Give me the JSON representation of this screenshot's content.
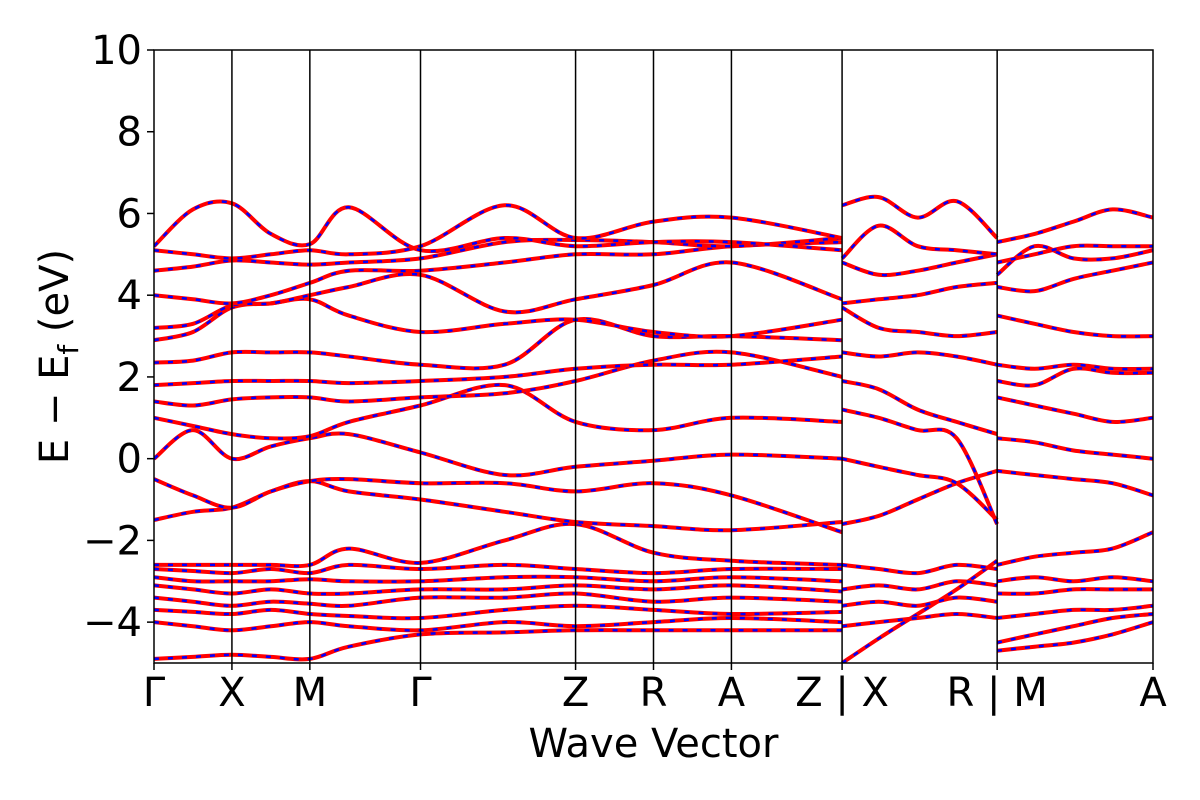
{
  "chart_data": {
    "type": "line",
    "xlabel": "Wave Vector",
    "ylabel_main": "E − E",
    "ylabel_sub": "f",
    "ylabel_unit": " (eV)",
    "ylim": [
      -5,
      10
    ],
    "yticks": [
      {
        "value": -4,
        "label": "−4"
      },
      {
        "value": -2,
        "label": "−2"
      },
      {
        "value": 0,
        "label": "0"
      },
      {
        "value": 2,
        "label": "2"
      },
      {
        "value": 4,
        "label": "4"
      },
      {
        "value": 6,
        "label": "6"
      },
      {
        "value": 8,
        "label": "8"
      },
      {
        "value": 10,
        "label": "10"
      }
    ],
    "kpoints": [
      {
        "label": "Γ",
        "pos": 0
      },
      {
        "label": "X",
        "pos": 1
      },
      {
        "label": "M",
        "pos": 2
      },
      {
        "label": "Γ",
        "pos": 3.42
      },
      {
        "label": "Z",
        "pos": 5.41
      },
      {
        "label": "R",
        "pos": 6.41
      },
      {
        "label": "A",
        "pos": 7.41
      },
      {
        "label": "Z | X",
        "pos": 8.83
      },
      {
        "label": "R | M",
        "pos": 10.82
      },
      {
        "label": "A",
        "pos": 12.82
      }
    ],
    "segments": [
      [
        0,
        8.83
      ],
      [
        8.83,
        10.82
      ],
      [
        10.82,
        12.82
      ]
    ],
    "grid": false,
    "style": {
      "line_color": "#ff0000",
      "dash_color": "#0000ff",
      "axis_color": "#000000"
    },
    "bands": [
      {
        "x": [
          0,
          0.5,
          1,
          1.5,
          2,
          2.5,
          3.42,
          4.5,
          5.41,
          6.41,
          7.41,
          8.83
        ],
        "y": [
          -4.9,
          -4.85,
          -4.8,
          -4.85,
          -4.9,
          -4.6,
          -4.3,
          -4.25,
          -4.2,
          -4.2,
          -4.2,
          -4.2
        ]
      },
      {
        "x": [
          0,
          0.5,
          1,
          1.5,
          2,
          2.5,
          3.42,
          4.5,
          5.41,
          6.41,
          7.41,
          8.83
        ],
        "y": [
          -4.0,
          -4.1,
          -4.2,
          -4.1,
          -4.0,
          -4.1,
          -4.2,
          -4.0,
          -4.1,
          -4.0,
          -3.9,
          -4.0
        ]
      },
      {
        "x": [
          0,
          0.5,
          1,
          1.5,
          2,
          2.5,
          3.42,
          4.5,
          5.41,
          6.41,
          7.41,
          8.83
        ],
        "y": [
          -3.7,
          -3.75,
          -3.8,
          -3.7,
          -3.8,
          -3.85,
          -3.9,
          -3.7,
          -3.6,
          -3.7,
          -3.8,
          -3.75
        ]
      },
      {
        "x": [
          0,
          0.5,
          1,
          1.5,
          2,
          2.5,
          3.42,
          4.5,
          5.41,
          6.41,
          7.41,
          8.83
        ],
        "y": [
          -3.4,
          -3.5,
          -3.6,
          -3.5,
          -3.55,
          -3.6,
          -3.4,
          -3.4,
          -3.3,
          -3.5,
          -3.4,
          -3.5
        ]
      },
      {
        "x": [
          0,
          0.5,
          1,
          1.5,
          2,
          2.5,
          3.42,
          4.5,
          5.41,
          6.41,
          7.41,
          8.83
        ],
        "y": [
          -3.1,
          -3.2,
          -3.3,
          -3.2,
          -3.3,
          -3.3,
          -3.2,
          -3.2,
          -3.1,
          -3.2,
          -3.1,
          -3.25
        ]
      },
      {
        "x": [
          0,
          0.5,
          1,
          1.5,
          2,
          2.5,
          3.42,
          4.5,
          5.41,
          6.41,
          7.41,
          8.83
        ],
        "y": [
          -2.9,
          -3.0,
          -3.0,
          -3.0,
          -2.95,
          -3.0,
          -3.0,
          -2.9,
          -2.9,
          -3.0,
          -2.9,
          -3.0
        ]
      },
      {
        "x": [
          0,
          0.5,
          1,
          1.5,
          2,
          2.5,
          3.42,
          4.5,
          5.41,
          6.41,
          7.41,
          8.83
        ],
        "y": [
          -2.7,
          -2.75,
          -2.8,
          -2.7,
          -2.8,
          -2.6,
          -2.7,
          -2.6,
          -2.7,
          -2.8,
          -2.7,
          -2.7
        ]
      },
      {
        "x": [
          0,
          0.5,
          1,
          1.5,
          2,
          2.5,
          3.42,
          4.5,
          5.41,
          6.41,
          7.41,
          8.83
        ],
        "y": [
          -2.6,
          -2.6,
          -2.6,
          -2.6,
          -2.6,
          -2.2,
          -2.55,
          -2.0,
          -1.6,
          -2.3,
          -2.5,
          -2.6
        ]
      },
      {
        "x": [
          0,
          0.5,
          1,
          1.5,
          2,
          2.5,
          3.42,
          4.5,
          5.41,
          6.41,
          7.41,
          8.83
        ],
        "y": [
          -1.5,
          -1.3,
          -1.2,
          -0.8,
          -0.55,
          -0.8,
          -1.0,
          -1.3,
          -1.55,
          -1.65,
          -1.75,
          -1.55
        ]
      },
      {
        "x": [
          0,
          0.5,
          1,
          1.5,
          2,
          2.5,
          3.42,
          4.5,
          5.41,
          6.41,
          7.41,
          8.83
        ],
        "y": [
          -0.5,
          -0.9,
          -1.2,
          -0.8,
          -0.55,
          -0.5,
          -0.6,
          -0.6,
          -0.8,
          -0.6,
          -0.9,
          -1.8
        ]
      },
      {
        "x": [
          0,
          0.5,
          1,
          1.5,
          2,
          2.5,
          3.42,
          4.5,
          5.41,
          6.41,
          7.41,
          8.83
        ],
        "y": [
          0.0,
          0.7,
          0.0,
          0.3,
          0.5,
          0.6,
          0.15,
          -0.4,
          -0.2,
          -0.05,
          0.1,
          0.0
        ]
      },
      {
        "x": [
          0,
          0.5,
          1,
          1.5,
          2,
          2.5,
          3.42,
          4.5,
          5.41,
          6.41,
          7.41,
          8.83
        ],
        "y": [
          1.0,
          0.8,
          0.6,
          0.5,
          0.55,
          0.9,
          1.3,
          1.8,
          0.9,
          0.7,
          1.0,
          0.9
        ]
      },
      {
        "x": [
          0,
          0.5,
          1,
          1.5,
          2,
          2.5,
          3.42,
          4.5,
          5.41,
          6.41,
          7.41,
          8.83
        ],
        "y": [
          1.4,
          1.3,
          1.45,
          1.5,
          1.5,
          1.4,
          1.5,
          1.6,
          1.9,
          2.4,
          2.6,
          2.0
        ]
      },
      {
        "x": [
          0,
          0.5,
          1,
          1.5,
          2,
          2.5,
          3.42,
          4.5,
          5.41,
          6.41,
          7.41,
          8.83
        ],
        "y": [
          1.8,
          1.85,
          1.9,
          1.9,
          1.9,
          1.85,
          1.9,
          2.0,
          2.2,
          2.3,
          2.3,
          2.5
        ]
      },
      {
        "x": [
          0,
          0.5,
          1,
          1.5,
          2,
          2.5,
          3.42,
          4.5,
          5.41,
          6.41,
          7.41,
          8.83
        ],
        "y": [
          2.35,
          2.4,
          2.6,
          2.6,
          2.6,
          2.5,
          2.3,
          2.3,
          3.4,
          3.0,
          3.0,
          2.9
        ]
      },
      {
        "x": [
          0,
          0.5,
          1,
          1.5,
          2,
          2.5,
          3.42,
          4.5,
          5.41,
          6.41,
          7.41,
          8.83
        ],
        "y": [
          2.9,
          3.1,
          3.7,
          3.8,
          3.9,
          3.5,
          3.1,
          3.3,
          3.4,
          3.1,
          3.0,
          3.4
        ]
      },
      {
        "x": [
          0,
          0.5,
          1,
          1.5,
          2,
          2.5,
          3.42,
          4.5,
          5.41,
          6.41,
          7.41,
          8.83
        ],
        "y": [
          3.2,
          3.3,
          3.75,
          3.8,
          4.0,
          4.2,
          4.5,
          3.6,
          3.9,
          4.25,
          4.8,
          3.9
        ]
      },
      {
        "x": [
          0,
          0.5,
          1,
          1.5,
          2,
          2.5,
          3.42,
          4.5,
          5.41,
          6.41,
          7.41,
          8.83
        ],
        "y": [
          4.0,
          3.9,
          3.8,
          4.0,
          4.3,
          4.6,
          4.6,
          4.8,
          5.0,
          5.0,
          5.2,
          5.3
        ]
      },
      {
        "x": [
          0,
          0.5,
          1,
          1.5,
          2,
          2.5,
          3.42,
          4.5,
          5.41,
          6.41,
          7.41,
          8.83
        ],
        "y": [
          4.6,
          4.7,
          4.85,
          4.8,
          4.75,
          4.8,
          4.9,
          5.3,
          5.35,
          5.3,
          5.2,
          5.4
        ]
      },
      {
        "x": [
          0,
          0.5,
          1,
          1.5,
          2,
          2.5,
          3.42,
          4.5,
          5.41,
          6.41,
          7.41,
          8.83
        ],
        "y": [
          5.1,
          5.0,
          4.9,
          5.0,
          5.1,
          5.0,
          5.2,
          6.2,
          5.4,
          5.8,
          5.9,
          5.4
        ]
      },
      {
        "x": [
          0,
          0.5,
          1,
          1.5,
          2,
          2.5,
          3.42,
          4.5,
          5.41,
          6.41,
          7.41,
          8.83
        ],
        "y": [
          5.2,
          6.1,
          6.25,
          5.5,
          5.25,
          6.15,
          5.1,
          5.4,
          5.2,
          5.3,
          5.3,
          5.1
        ]
      },
      {
        "x": [
          8.83,
          9.3,
          9.8,
          10.3,
          10.82
        ],
        "y": [
          -5.0,
          -4.4,
          -3.8,
          -3.2,
          -2.5
        ]
      },
      {
        "x": [
          8.83,
          9.3,
          9.8,
          10.3,
          10.82
        ],
        "y": [
          -4.1,
          -4.0,
          -3.9,
          -3.8,
          -3.9
        ]
      },
      {
        "x": [
          8.83,
          9.3,
          9.8,
          10.3,
          10.82
        ],
        "y": [
          -3.6,
          -3.5,
          -3.6,
          -3.4,
          -3.5
        ]
      },
      {
        "x": [
          8.83,
          9.3,
          9.8,
          10.3,
          10.82
        ],
        "y": [
          -3.2,
          -3.1,
          -3.2,
          -3.0,
          -3.1
        ]
      },
      {
        "x": [
          8.83,
          9.3,
          9.8,
          10.3,
          10.82
        ],
        "y": [
          -2.6,
          -2.7,
          -2.8,
          -2.6,
          -2.7
        ]
      },
      {
        "x": [
          8.83,
          9.3,
          9.8,
          10.3,
          10.82
        ],
        "y": [
          -1.6,
          -1.4,
          -1.0,
          -0.6,
          -0.3
        ]
      },
      {
        "x": [
          8.83,
          9.3,
          9.8,
          10.3,
          10.82
        ],
        "y": [
          0.0,
          -0.2,
          -0.4,
          -0.6,
          -1.5
        ]
      },
      {
        "x": [
          8.83,
          9.3,
          9.8,
          10.3,
          10.82
        ],
        "y": [
          1.2,
          1.0,
          0.7,
          0.5,
          -1.6
        ]
      },
      {
        "x": [
          8.83,
          9.3,
          9.8,
          10.3,
          10.82
        ],
        "y": [
          1.9,
          1.7,
          1.2,
          0.9,
          0.6
        ]
      },
      {
        "x": [
          8.83,
          9.3,
          9.8,
          10.3,
          10.82
        ],
        "y": [
          2.6,
          2.5,
          2.6,
          2.5,
          2.3
        ]
      },
      {
        "x": [
          8.83,
          9.3,
          9.8,
          10.3,
          10.82
        ],
        "y": [
          3.7,
          3.2,
          3.1,
          3.0,
          3.1
        ]
      },
      {
        "x": [
          8.83,
          9.3,
          9.8,
          10.3,
          10.82
        ],
        "y": [
          3.8,
          3.9,
          4.0,
          4.2,
          4.3
        ]
      },
      {
        "x": [
          8.83,
          9.3,
          9.8,
          10.3,
          10.82
        ],
        "y": [
          4.8,
          4.5,
          4.6,
          4.8,
          5.0
        ]
      },
      {
        "x": [
          8.83,
          9.3,
          9.8,
          10.3,
          10.82
        ],
        "y": [
          4.9,
          5.7,
          5.2,
          5.1,
          5.0
        ]
      },
      {
        "x": [
          8.83,
          9.3,
          9.8,
          10.3,
          10.82
        ],
        "y": [
          6.2,
          6.4,
          5.9,
          6.3,
          5.4
        ]
      },
      {
        "x": [
          10.82,
          11.3,
          11.8,
          12.3,
          12.82
        ],
        "y": [
          -4.7,
          -4.6,
          -4.5,
          -4.3,
          -4.0
        ]
      },
      {
        "x": [
          10.82,
          11.3,
          11.8,
          12.3,
          12.82
        ],
        "y": [
          -4.5,
          -4.3,
          -4.1,
          -3.9,
          -3.8
        ]
      },
      {
        "x": [
          10.82,
          11.3,
          11.8,
          12.3,
          12.82
        ],
        "y": [
          -3.9,
          -3.8,
          -3.7,
          -3.7,
          -3.6
        ]
      },
      {
        "x": [
          10.82,
          11.3,
          11.8,
          12.3,
          12.82
        ],
        "y": [
          -3.3,
          -3.3,
          -3.2,
          -3.2,
          -3.2
        ]
      },
      {
        "x": [
          10.82,
          11.3,
          11.8,
          12.3,
          12.82
        ],
        "y": [
          -3.0,
          -2.9,
          -3.0,
          -2.9,
          -3.0
        ]
      },
      {
        "x": [
          10.82,
          11.3,
          11.8,
          12.3,
          12.82
        ],
        "y": [
          -2.6,
          -2.4,
          -2.3,
          -2.2,
          -1.8
        ]
      },
      {
        "x": [
          10.82,
          11.3,
          11.8,
          12.3,
          12.82
        ],
        "y": [
          -0.3,
          -0.4,
          -0.5,
          -0.6,
          -0.9
        ]
      },
      {
        "x": [
          10.82,
          11.3,
          11.8,
          12.3,
          12.82
        ],
        "y": [
          0.5,
          0.4,
          0.2,
          0.1,
          0.0
        ]
      },
      {
        "x": [
          10.82,
          11.3,
          11.8,
          12.3,
          12.82
        ],
        "y": [
          1.5,
          1.3,
          1.1,
          0.9,
          1.0
        ]
      },
      {
        "x": [
          10.82,
          11.3,
          11.8,
          12.3,
          12.82
        ],
        "y": [
          1.9,
          1.8,
          2.2,
          2.1,
          2.1
        ]
      },
      {
        "x": [
          10.82,
          11.3,
          11.8,
          12.3,
          12.82
        ],
        "y": [
          2.3,
          2.2,
          2.3,
          2.2,
          2.2
        ]
      },
      {
        "x": [
          10.82,
          11.3,
          11.8,
          12.3,
          12.82
        ],
        "y": [
          3.5,
          3.3,
          3.1,
          3.0,
          3.0
        ]
      },
      {
        "x": [
          10.82,
          11.3,
          11.8,
          12.3,
          12.82
        ],
        "y": [
          4.2,
          4.1,
          4.4,
          4.6,
          4.8
        ]
      },
      {
        "x": [
          10.82,
          11.3,
          11.8,
          12.3,
          12.82
        ],
        "y": [
          4.5,
          5.2,
          4.9,
          4.9,
          5.1
        ]
      },
      {
        "x": [
          10.82,
          11.3,
          11.8,
          12.3,
          12.82
        ],
        "y": [
          4.8,
          5.0,
          5.2,
          5.2,
          5.2
        ]
      },
      {
        "x": [
          10.82,
          11.3,
          11.8,
          12.3,
          12.82
        ],
        "y": [
          5.3,
          5.5,
          5.8,
          6.1,
          5.9
        ]
      }
    ]
  }
}
